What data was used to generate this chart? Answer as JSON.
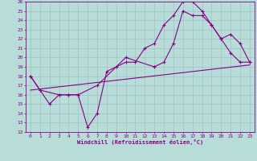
{
  "title": "",
  "xlabel": "Windchill (Refroidissement éolien,°C)",
  "ylabel": "",
  "bg_color": "#b8ddd8",
  "line_color": "#880088",
  "grid_color": "#99bbbb",
  "xlim": [
    -0.5,
    23.5
  ],
  "ylim": [
    12,
    26
  ],
  "xticks": [
    0,
    1,
    2,
    3,
    4,
    5,
    6,
    7,
    8,
    9,
    10,
    11,
    12,
    13,
    14,
    15,
    16,
    17,
    18,
    19,
    20,
    21,
    22,
    23
  ],
  "yticks": [
    12,
    13,
    14,
    15,
    16,
    17,
    18,
    19,
    20,
    21,
    22,
    23,
    24,
    25,
    26
  ],
  "line1_x": [
    0,
    1,
    2,
    3,
    4,
    5,
    6,
    7,
    8,
    9,
    10,
    11,
    12,
    13,
    14,
    15,
    16,
    17,
    18,
    19,
    20,
    21,
    22,
    23
  ],
  "line1_y": [
    18.0,
    16.5,
    15.0,
    16.0,
    16.0,
    16.0,
    12.5,
    14.0,
    18.5,
    19.0,
    19.5,
    19.5,
    21.0,
    21.5,
    23.5,
    24.5,
    26.0,
    26.0,
    25.0,
    23.5,
    22.0,
    20.5,
    19.5,
    19.5
  ],
  "line2_x": [
    0,
    1,
    3,
    4,
    5,
    7,
    10,
    13,
    14,
    15,
    16,
    17,
    18,
    19,
    20,
    21,
    22,
    23
  ],
  "line2_y": [
    18.0,
    16.5,
    16.0,
    16.0,
    16.0,
    17.0,
    20.0,
    19.0,
    19.5,
    21.5,
    25.0,
    24.5,
    24.5,
    23.5,
    22.0,
    22.5,
    21.5,
    19.5
  ],
  "line3_x": [
    0,
    23
  ],
  "line3_y": [
    16.5,
    19.2
  ],
  "tick_fontsize": 4.5,
  "xlabel_fontsize": 5.0,
  "linewidth": 0.8,
  "markersize": 2.5
}
